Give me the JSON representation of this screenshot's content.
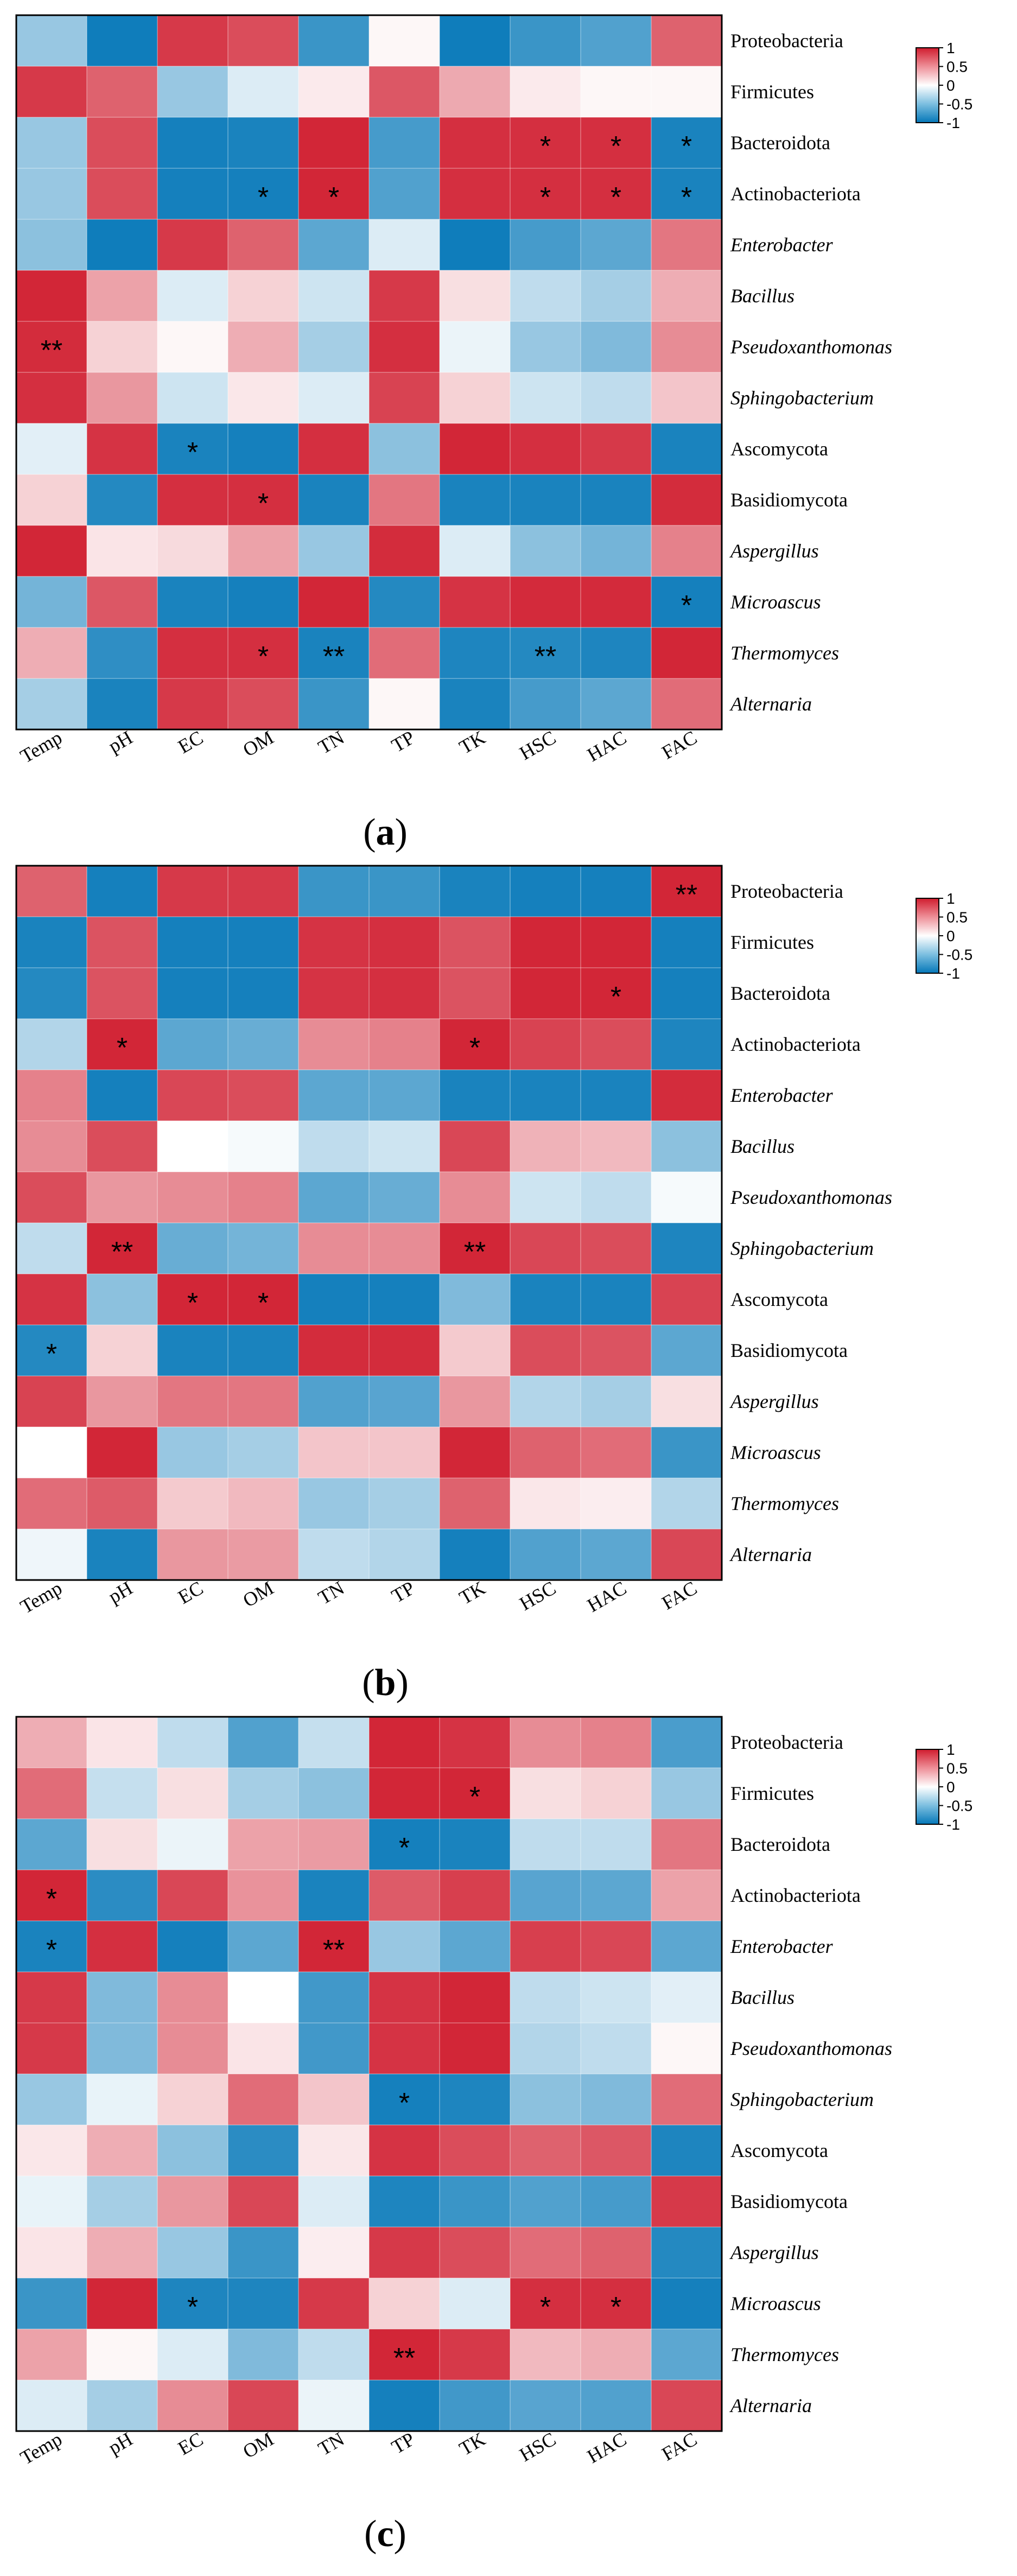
{
  "chart_data": [
    {
      "type": "heatmap",
      "panel_label": "a",
      "rows": [
        "Proteobacteria",
        "Firmicutes",
        "Bacteroidota",
        "Actinobacteriota",
        "Enterobacter",
        "Bacillus",
        "Pseudoxanthomonas",
        "Sphingobacterium",
        "Ascomycota",
        "Basidiomycota",
        "Aspergillus",
        "Microascus",
        "Thermomyces",
        "Alternaria"
      ],
      "italic_rows": [
        "Enterobacter",
        "Bacillus",
        "Pseudoxanthomonas",
        "Sphingobacterium",
        "Aspergillus",
        "Microascus",
        "Thermomyces",
        "Alternaria"
      ],
      "columns": [
        "Temp",
        "pH",
        "EC",
        "OM",
        "TN",
        "TP",
        "TK",
        "HSC",
        "HAC",
        "FAC"
      ],
      "colorbar": {
        "min": -1,
        "max": 1,
        "ticks": [
          "1",
          "0.5",
          "0",
          "-0.5",
          "-1"
        ],
        "low_color": "#0477b8",
        "mid_color": "#ffffff",
        "high_color": "#d01c2e"
      },
      "values": [
        [
          -0.35,
          -0.95,
          0.85,
          0.75,
          -0.75,
          0.02,
          -0.95,
          -0.75,
          -0.65,
          0.65
        ],
        [
          0.85,
          0.65,
          -0.35,
          -0.1,
          0.06,
          0.7,
          0.32,
          0.06,
          0.02,
          0.02
        ],
        [
          -0.35,
          0.75,
          -0.92,
          -0.9,
          0.95,
          -0.7,
          0.9,
          0.9,
          0.9,
          -0.9
        ],
        [
          -0.35,
          0.75,
          -0.92,
          -0.92,
          0.95,
          -0.65,
          0.9,
          0.9,
          0.9,
          -0.9
        ],
        [
          -0.4,
          -0.95,
          0.85,
          0.65,
          -0.6,
          -0.1,
          -0.95,
          -0.7,
          -0.6,
          0.55
        ],
        [
          0.95,
          0.35,
          -0.1,
          0.15,
          -0.15,
          0.85,
          0.1,
          -0.2,
          -0.3,
          0.3
        ],
        [
          0.92,
          0.15,
          0.02,
          0.3,
          -0.3,
          0.9,
          -0.05,
          -0.35,
          -0.45,
          0.45
        ],
        [
          0.9,
          0.4,
          -0.15,
          0.07,
          -0.1,
          0.8,
          0.15,
          -0.15,
          -0.2,
          0.2
        ],
        [
          -0.08,
          0.88,
          -0.9,
          -0.92,
          0.9,
          -0.4,
          0.95,
          0.9,
          0.85,
          -0.9
        ],
        [
          0.15,
          -0.85,
          0.9,
          0.9,
          -0.9,
          0.55,
          -0.9,
          -0.9,
          -0.9,
          0.92
        ],
        [
          0.95,
          0.08,
          0.12,
          0.35,
          -0.35,
          0.92,
          -0.1,
          -0.4,
          -0.5,
          0.5
        ],
        [
          -0.5,
          0.7,
          -0.9,
          -0.92,
          0.95,
          -0.85,
          0.88,
          0.93,
          0.93,
          -0.92
        ],
        [
          0.3,
          -0.8,
          0.9,
          0.9,
          -0.9,
          0.6,
          -0.88,
          -0.85,
          -0.88,
          0.95
        ],
        [
          -0.3,
          -0.9,
          0.85,
          0.75,
          -0.75,
          0.02,
          -0.9,
          -0.7,
          -0.6,
          0.6
        ]
      ],
      "significance": [
        [
          "",
          "",
          "",
          "",
          "",
          "",
          "",
          "",
          "",
          ""
        ],
        [
          "",
          "",
          "",
          "",
          "",
          "",
          "",
          "",
          "",
          ""
        ],
        [
          "",
          "",
          "",
          "",
          "",
          "",
          "",
          "*",
          "*",
          "*"
        ],
        [
          "",
          "",
          "",
          "*",
          "*",
          "",
          "",
          "*",
          "*",
          "*"
        ],
        [
          "",
          "",
          "",
          "",
          "",
          "",
          "",
          "",
          "",
          ""
        ],
        [
          "",
          "",
          "",
          "",
          "",
          "",
          "",
          "",
          "",
          ""
        ],
        [
          "**",
          "",
          "",
          "",
          "",
          "",
          "",
          "",
          "",
          ""
        ],
        [
          "",
          "",
          "",
          "",
          "",
          "",
          "",
          "",
          "",
          ""
        ],
        [
          "",
          "",
          "*",
          "",
          "",
          "",
          "",
          "",
          "",
          ""
        ],
        [
          "",
          "",
          "",
          "*",
          "",
          "",
          "",
          "",
          "",
          ""
        ],
        [
          "",
          "",
          "",
          "",
          "",
          "",
          "",
          "",
          "",
          ""
        ],
        [
          "",
          "",
          "",
          "",
          "",
          "",
          "",
          "",
          "",
          "*"
        ],
        [
          "",
          "",
          "",
          "*",
          "**",
          "",
          "",
          "**",
          "",
          ""
        ],
        [
          "",
          "",
          "",
          "",
          "",
          "",
          "",
          "",
          "",
          ""
        ]
      ]
    },
    {
      "type": "heatmap",
      "panel_label": "b",
      "rows": [
        "Proteobacteria",
        "Firmicutes",
        "Bacteroidota",
        "Actinobacteriota",
        "Enterobacter",
        "Bacillus",
        "Pseudoxanthomonas",
        "Sphingobacterium",
        "Ascomycota",
        "Basidiomycota",
        "Aspergillus",
        "Microascus",
        "Thermomyces",
        "Alternaria"
      ],
      "italic_rows": [
        "Enterobacter",
        "Bacillus",
        "Pseudoxanthomonas",
        "Sphingobacterium",
        "Aspergillus",
        "Microascus",
        "Thermomyces",
        "Alternaria"
      ],
      "columns": [
        "Temp",
        "pH",
        "EC",
        "OM",
        "TN",
        "TP",
        "TK",
        "HSC",
        "HAC",
        "FAC"
      ],
      "colorbar": {
        "min": -1,
        "max": 1,
        "ticks": [
          "1",
          "0.5",
          "0",
          "-0.5",
          "-1"
        ],
        "low_color": "#0477b8",
        "mid_color": "#ffffff",
        "high_color": "#d01c2e"
      },
      "values": [
        [
          0.65,
          -0.92,
          0.85,
          0.85,
          -0.75,
          -0.75,
          -0.9,
          -0.92,
          -0.92,
          0.95
        ],
        [
          -0.9,
          0.72,
          -0.92,
          -0.92,
          0.88,
          0.9,
          0.72,
          0.95,
          0.95,
          -0.92
        ],
        [
          -0.85,
          0.72,
          -0.92,
          -0.92,
          0.88,
          0.9,
          0.72,
          0.95,
          0.95,
          -0.92
        ],
        [
          -0.25,
          0.95,
          -0.6,
          -0.55,
          0.45,
          0.5,
          0.95,
          0.8,
          0.75,
          -0.88
        ],
        [
          0.5,
          -0.92,
          0.78,
          0.75,
          -0.6,
          -0.6,
          -0.9,
          -0.9,
          -0.9,
          0.92
        ],
        [
          0.45,
          0.75,
          0.0,
          -0.02,
          -0.2,
          -0.15,
          0.78,
          0.28,
          0.25,
          -0.4
        ],
        [
          0.75,
          0.4,
          0.45,
          0.5,
          -0.6,
          -0.55,
          0.45,
          -0.15,
          -0.2,
          -0.02
        ],
        [
          -0.2,
          0.95,
          -0.55,
          -0.5,
          0.45,
          0.45,
          0.95,
          0.78,
          0.75,
          -0.88
        ],
        [
          0.88,
          -0.4,
          0.95,
          0.95,
          -0.92,
          -0.92,
          -0.45,
          -0.9,
          -0.9,
          0.8
        ],
        [
          -0.85,
          0.15,
          -0.9,
          -0.9,
          0.92,
          0.92,
          0.18,
          0.75,
          0.72,
          -0.6
        ],
        [
          0.8,
          0.4,
          0.55,
          0.55,
          -0.65,
          -0.62,
          0.4,
          -0.25,
          -0.3,
          0.1
        ],
        [
          0.0,
          0.95,
          -0.35,
          -0.3,
          0.2,
          0.2,
          0.95,
          0.65,
          0.6,
          -0.75
        ],
        [
          0.6,
          0.68,
          0.18,
          0.25,
          -0.35,
          -0.3,
          0.65,
          0.07,
          0.05,
          -0.25
        ],
        [
          -0.04,
          -0.9,
          0.4,
          0.38,
          -0.2,
          -0.25,
          -0.92,
          -0.65,
          -0.6,
          0.78
        ]
      ],
      "significance": [
        [
          "",
          "",
          "",
          "",
          "",
          "",
          "",
          "",
          "",
          "**"
        ],
        [
          "",
          "",
          "",
          "",
          "",
          "",
          "",
          "",
          "",
          ""
        ],
        [
          "",
          "",
          "",
          "",
          "",
          "",
          "",
          "",
          "*",
          ""
        ],
        [
          "",
          "*",
          "",
          "",
          "",
          "",
          "*",
          "",
          "",
          ""
        ],
        [
          "",
          "",
          "",
          "",
          "",
          "",
          "",
          "",
          "",
          ""
        ],
        [
          "",
          "",
          "",
          "",
          "",
          "",
          "",
          "",
          "",
          ""
        ],
        [
          "",
          "",
          "",
          "",
          "",
          "",
          "",
          "",
          "",
          ""
        ],
        [
          "",
          "**",
          "",
          "",
          "",
          "",
          "**",
          "",
          "",
          ""
        ],
        [
          "",
          "",
          "*",
          "*",
          "",
          "",
          "",
          "",
          "",
          ""
        ],
        [
          "*",
          "",
          "",
          "",
          "",
          "",
          "",
          "",
          "",
          ""
        ],
        [
          "",
          "",
          "",
          "",
          "",
          "",
          "",
          "",
          "",
          ""
        ],
        [
          "",
          "",
          "",
          "",
          "",
          "",
          "",
          "",
          "",
          ""
        ],
        [
          "",
          "",
          "",
          "",
          "",
          "",
          "",
          "",
          "",
          ""
        ],
        [
          "",
          "",
          "",
          "",
          "",
          "",
          "",
          "",
          "",
          ""
        ]
      ]
    },
    {
      "type": "heatmap",
      "panel_label": "c",
      "rows": [
        "Proteobacteria",
        "Firmicutes",
        "Bacteroidota",
        "Actinobacteriota",
        "Enterobacter",
        "Bacillus",
        "Pseudoxanthomonas",
        "Sphingobacterium",
        "Ascomycota",
        "Basidiomycota",
        "Aspergillus",
        "Microascus",
        "Thermomyces",
        "Alternaria"
      ],
      "italic_rows": [
        "Enterobacter",
        "Bacillus",
        "Pseudoxanthomonas",
        "Sphingobacterium",
        "Aspergillus",
        "Microascus",
        "Thermomyces",
        "Alternaria"
      ],
      "columns": [
        "Temp",
        "pH",
        "EC",
        "OM",
        "TN",
        "TP",
        "TK",
        "HSC",
        "HAC",
        "FAC"
      ],
      "colorbar": {
        "min": -1,
        "max": 1,
        "ticks": [
          "1",
          "0.5",
          "0",
          "-0.5",
          "-1"
        ],
        "low_color": "#0477b8",
        "mid_color": "#ffffff",
        "high_color": "#d01c2e"
      },
      "values": [
        [
          0.3,
          0.08,
          -0.2,
          -0.65,
          -0.18,
          0.95,
          0.88,
          0.45,
          0.5,
          -0.68
        ],
        [
          0.6,
          -0.18,
          0.1,
          -0.3,
          -0.4,
          0.95,
          0.95,
          0.1,
          0.15,
          -0.35
        ],
        [
          -0.6,
          0.1,
          -0.05,
          0.35,
          0.38,
          -0.92,
          -0.9,
          -0.2,
          -0.2,
          0.55
        ],
        [
          0.95,
          -0.82,
          0.78,
          0.42,
          -0.9,
          0.68,
          0.82,
          -0.62,
          -0.6,
          0.35
        ],
        [
          -0.9,
          0.9,
          -0.92,
          -0.6,
          0.95,
          -0.35,
          -0.6,
          0.82,
          0.78,
          -0.6
        ],
        [
          0.85,
          -0.45,
          0.45,
          0.0,
          -0.72,
          0.88,
          0.95,
          -0.2,
          -0.15,
          -0.08
        ],
        [
          0.85,
          -0.45,
          0.45,
          0.08,
          -0.72,
          0.88,
          0.95,
          -0.25,
          -0.2,
          0.02
        ],
        [
          -0.35,
          -0.06,
          0.15,
          0.6,
          0.2,
          -0.92,
          -0.88,
          -0.4,
          -0.45,
          0.6
        ],
        [
          0.07,
          0.3,
          -0.4,
          -0.82,
          0.07,
          0.88,
          0.75,
          0.65,
          0.7,
          -0.88
        ],
        [
          -0.06,
          -0.3,
          0.4,
          0.78,
          -0.1,
          -0.88,
          -0.75,
          -0.65,
          -0.7,
          0.85
        ],
        [
          0.08,
          0.3,
          -0.35,
          -0.75,
          0.05,
          0.85,
          0.75,
          0.6,
          0.65,
          -0.85
        ],
        [
          -0.75,
          0.95,
          -0.88,
          -0.88,
          0.85,
          0.15,
          -0.1,
          0.9,
          0.9,
          -0.92
        ],
        [
          0.35,
          0.02,
          -0.1,
          -0.45,
          -0.2,
          0.95,
          0.85,
          0.25,
          0.3,
          -0.6
        ],
        [
          -0.1,
          -0.3,
          0.45,
          0.78,
          -0.05,
          -0.92,
          -0.72,
          -0.62,
          -0.65,
          0.78
        ]
      ],
      "significance": [
        [
          "",
          "",
          "",
          "",
          "",
          "",
          "",
          "",
          "",
          ""
        ],
        [
          "",
          "",
          "",
          "",
          "",
          "",
          "*",
          "",
          "",
          ""
        ],
        [
          "",
          "",
          "",
          "",
          "",
          "*",
          "",
          "",
          "",
          ""
        ],
        [
          "*",
          "",
          "",
          "",
          "",
          "",
          "",
          "",
          "",
          ""
        ],
        [
          "*",
          "",
          "",
          "",
          "**",
          "",
          "",
          "",
          "",
          ""
        ],
        [
          "",
          "",
          "",
          "",
          "",
          "",
          "",
          "",
          "",
          ""
        ],
        [
          "",
          "",
          "",
          "",
          "",
          "",
          "",
          "",
          "",
          ""
        ],
        [
          "",
          "",
          "",
          "",
          "",
          "*",
          "",
          "",
          "",
          ""
        ],
        [
          "",
          "",
          "",
          "",
          "",
          "",
          "",
          "",
          "",
          ""
        ],
        [
          "",
          "",
          "",
          "",
          "",
          "",
          "",
          "",
          "",
          ""
        ],
        [
          "",
          "",
          "",
          "",
          "",
          "",
          "",
          "",
          "",
          ""
        ],
        [
          "",
          "",
          "*",
          "",
          "",
          "",
          "",
          "*",
          "*",
          ""
        ],
        [
          "",
          "",
          "",
          "",
          "",
          "**",
          "",
          "",
          "",
          ""
        ],
        [
          "",
          "",
          "",
          "",
          "",
          "",
          "",
          "",
          "",
          ""
        ]
      ]
    }
  ]
}
